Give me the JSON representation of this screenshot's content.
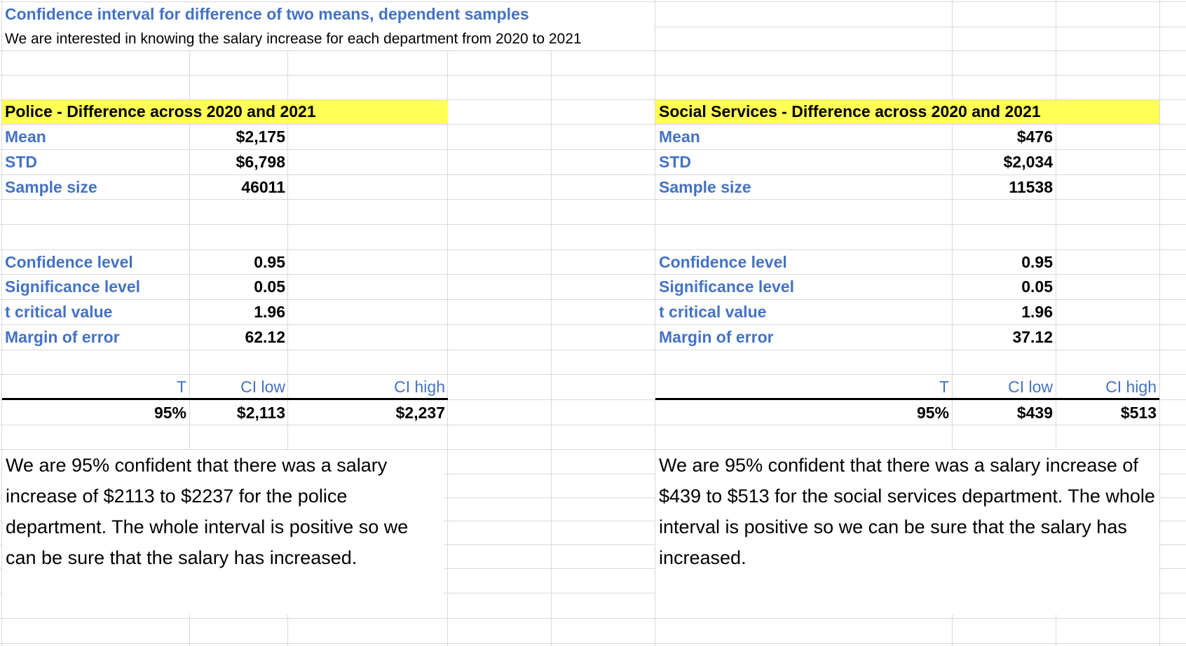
{
  "header": {
    "title": "Confidence interval for difference of two means, dependent samples",
    "subtitle": "We are interested in knowing the salary increase for each department from 2020 to 2021"
  },
  "police": {
    "section_title": "Police - Difference across 2020 and 2021",
    "mean_label": "Mean",
    "mean_value": "$2,175",
    "std_label": "STD",
    "std_value": "$6,798",
    "n_label": "Sample size",
    "n_value": "46011",
    "conf_label": "Confidence level",
    "conf_value": "0.95",
    "sig_label": "Significance level",
    "sig_value": "0.05",
    "t_label": "t critical value",
    "t_value": "1.96",
    "moe_label": "Margin of error",
    "moe_value": "62.12",
    "col_t": "T",
    "col_ci_low": "CI low",
    "col_ci_high": "CI high",
    "row_t": "95%",
    "row_ci_low": "$2,113",
    "row_ci_high": "$2,237",
    "conclusion": "We are 95% confident that there was a salary increase of $2113 to $2237 for the police department. The whole interval is positive so we can be sure that the salary has increased."
  },
  "social": {
    "section_title": "Social Services - Difference across 2020 and 2021",
    "mean_label": "Mean",
    "mean_value": "$476",
    "std_label": "STD",
    "std_value": "$2,034",
    "n_label": "Sample size",
    "n_value": "11538",
    "conf_label": "Confidence level",
    "conf_value": "0.95",
    "sig_label": "Significance level",
    "sig_value": "0.05",
    "t_label": "t critical value",
    "t_value": "1.96",
    "moe_label": "Margin of error",
    "moe_value": "37.12",
    "col_t": "T",
    "col_ci_low": "CI low",
    "col_ci_high": "CI high",
    "row_t": "95%",
    "row_ci_low": "$439",
    "row_ci_high": "$513",
    "conclusion": "We are 95% confident that there was a salary increase of $439 to $513 for the social services department. The whole interval is positive so we can be sure that the salary has increased."
  },
  "colors": {
    "label_blue": "#4472c4",
    "highlight_yellow": "#ffff54",
    "gridline": "#d9d9d9"
  }
}
